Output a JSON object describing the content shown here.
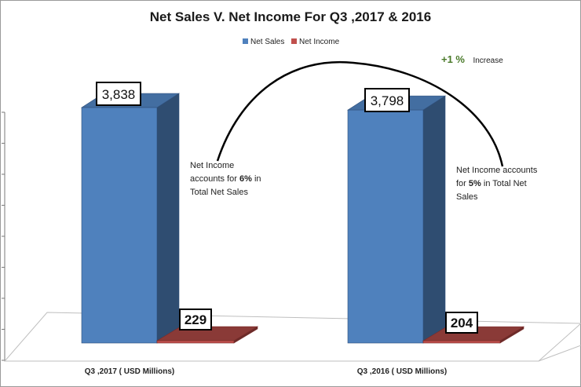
{
  "chart_data": {
    "type": "bar",
    "title": "Net Sales V. Net Income For Q3 ,2017 & 2016",
    "categories": [
      "Q3 ,2017 ( USD Millions)",
      "Q3 ,2016 ( USD Millions)"
    ],
    "series": [
      {
        "name": "Net Sales",
        "values": [
          3838,
          3798
        ],
        "labels": [
          "3,838",
          "3,798"
        ],
        "color": "#4f81bd"
      },
      {
        "name": "Net Income",
        "values": [
          229,
          204
        ],
        "labels": [
          "229",
          "204"
        ],
        "color": "#c0504d"
      }
    ],
    "legend": "top",
    "grid": false,
    "ylim": [
      0,
      4000
    ],
    "annotations": {
      "increase_value": "+1 %",
      "increase_text": "Increase",
      "note_2017": {
        "line1": "Net Income",
        "line2a": "accounts for ",
        "line2b": "6%",
        "line2c": " in",
        "line3": "Total Net Sales"
      },
      "note_2016": {
        "line1": "Net Income accounts",
        "line2a": "for ",
        "line2b": "5%",
        "line2c": " in Total Net",
        "line3": "Sales"
      }
    }
  }
}
